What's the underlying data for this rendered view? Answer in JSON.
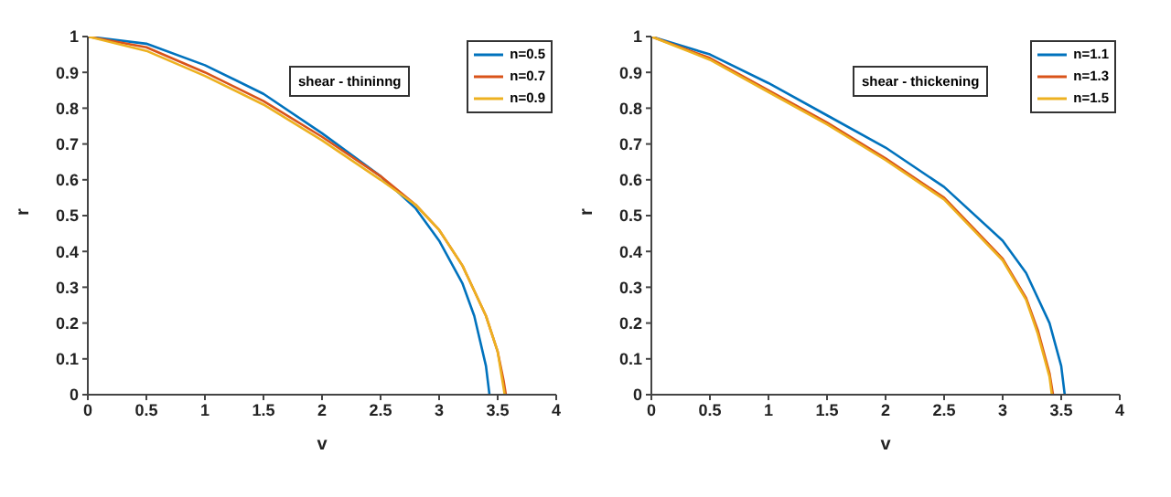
{
  "chart_data": [
    {
      "type": "line",
      "annotations": [
        "shear - thininng"
      ],
      "xlabel": "v",
      "ylabel": "r",
      "xlim": [
        0,
        4
      ],
      "ylim": [
        0,
        1
      ],
      "xticks": [
        0,
        0.5,
        1,
        1.5,
        2,
        2.5,
        3,
        3.5,
        4
      ],
      "yticks": [
        0,
        0.1,
        0.2,
        0.3,
        0.4,
        0.5,
        0.6,
        0.7,
        0.8,
        0.9,
        1
      ],
      "grid": false,
      "legend": "top right",
      "marker": "none",
      "line_style": "solid",
      "series": [
        {
          "name": "n=0.5",
          "color": "#0072bd",
          "x": [
            0,
            0.5,
            1,
            1.5,
            2,
            2.5,
            2.8,
            3,
            3.2,
            3.3,
            3.4,
            3.43
          ],
          "values": [
            1,
            0.98,
            0.92,
            0.84,
            0.73,
            0.61,
            0.52,
            0.43,
            0.31,
            0.22,
            0.08,
            0
          ]
        },
        {
          "name": "n=0.7",
          "color": "#d95319",
          "x": [
            0,
            0.5,
            1,
            1.5,
            2,
            2.5,
            2.8,
            3,
            3.2,
            3.4,
            3.5,
            3.55,
            3.57
          ],
          "values": [
            1,
            0.97,
            0.9,
            0.82,
            0.72,
            0.61,
            0.53,
            0.46,
            0.36,
            0.22,
            0.12,
            0.04,
            0
          ]
        },
        {
          "name": "n=0.9",
          "color": "#edb120",
          "x": [
            0,
            0.5,
            1,
            1.5,
            2,
            2.5,
            2.8,
            3,
            3.2,
            3.4,
            3.5,
            3.54,
            3.56
          ],
          "values": [
            1,
            0.96,
            0.89,
            0.81,
            0.71,
            0.6,
            0.53,
            0.46,
            0.36,
            0.22,
            0.12,
            0.04,
            0
          ]
        }
      ]
    },
    {
      "type": "line",
      "annotations": [
        "shear - thickening"
      ],
      "xlabel": "v",
      "ylabel": "r",
      "xlim": [
        0,
        4
      ],
      "ylim": [
        0,
        1
      ],
      "xticks": [
        0,
        0.5,
        1,
        1.5,
        2,
        2.5,
        3,
        3.5,
        4
      ],
      "yticks": [
        0,
        0.1,
        0.2,
        0.3,
        0.4,
        0.5,
        0.6,
        0.7,
        0.8,
        0.9,
        1
      ],
      "grid": false,
      "legend": "top right",
      "marker": "none",
      "line_style": "solid",
      "series": [
        {
          "name": "n=1.1",
          "color": "#0072bd",
          "x": [
            0,
            0.5,
            1,
            1.5,
            2,
            2.5,
            3,
            3.2,
            3.4,
            3.5,
            3.53
          ],
          "values": [
            1,
            0.95,
            0.87,
            0.78,
            0.69,
            0.58,
            0.43,
            0.34,
            0.2,
            0.08,
            0
          ]
        },
        {
          "name": "n=1.3",
          "color": "#d95319",
          "x": [
            0,
            0.5,
            1,
            1.5,
            2,
            2.5,
            3,
            3.2,
            3.3,
            3.4,
            3.43
          ],
          "values": [
            1,
            0.94,
            0.85,
            0.76,
            0.66,
            0.55,
            0.38,
            0.27,
            0.18,
            0.06,
            0
          ]
        },
        {
          "name": "n=1.5",
          "color": "#edb120",
          "x": [
            0,
            0.5,
            1,
            1.5,
            2,
            2.5,
            3,
            3.2,
            3.3,
            3.4,
            3.42
          ],
          "values": [
            1,
            0.935,
            0.845,
            0.755,
            0.655,
            0.545,
            0.375,
            0.265,
            0.17,
            0.05,
            0
          ]
        }
      ]
    }
  ]
}
